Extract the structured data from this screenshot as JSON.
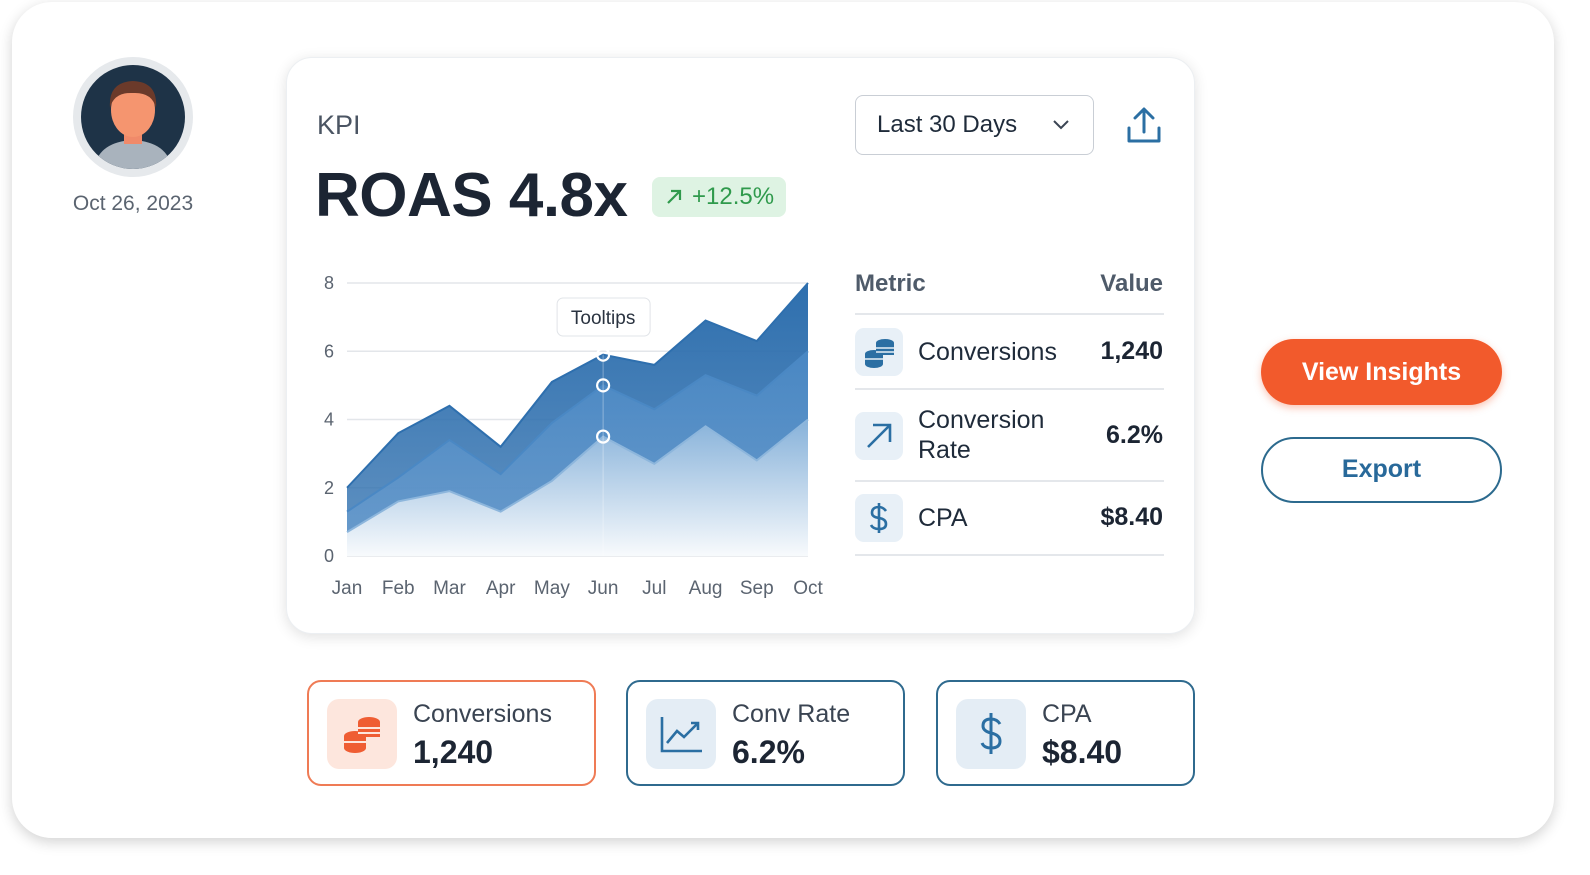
{
  "profile": {
    "date": "Oct 26, 2023"
  },
  "kpi_card": {
    "label": "KPI",
    "headline": "ROAS 4.8x",
    "change": "+12.5%",
    "period": "Last 30 Days"
  },
  "chart_data": {
    "type": "area",
    "categories": [
      "Jan",
      "Feb",
      "Mar",
      "Apr",
      "May",
      "Jun",
      "Jul",
      "Aug",
      "Sep",
      "Oct"
    ],
    "series": [
      {
        "color": "#2e6fae",
        "values": [
          2.0,
          3.6,
          4.4,
          3.2,
          5.1,
          5.9,
          5.6,
          6.9,
          6.3,
          8.0
        ]
      },
      {
        "color": "#4a88c4",
        "values": [
          1.3,
          2.3,
          3.4,
          2.4,
          3.9,
          5.0,
          4.3,
          5.3,
          4.7,
          6.0
        ]
      },
      {
        "color": "#8db6dc",
        "values": [
          0.7,
          1.6,
          1.9,
          1.3,
          2.2,
          3.5,
          2.7,
          3.8,
          2.8,
          4.0
        ]
      }
    ],
    "ylim": [
      0,
      8
    ],
    "yticks": [
      0,
      2,
      4,
      6,
      8
    ],
    "grid": true,
    "tooltip": "Tooltips"
  },
  "metrics_table": {
    "header": [
      "Metric",
      "Value"
    ],
    "rows": [
      [
        "Conversions",
        "1,240"
      ],
      [
        "Conversion Rate",
        "6.2%"
      ],
      [
        "CPA",
        "$8.40"
      ]
    ]
  },
  "actions": [
    "View Insights",
    "Export"
  ],
  "summary_cards": [
    {
      "label": "Conversions",
      "value": "1,240"
    },
    {
      "label": "Conv Rate",
      "value": "6.2%"
    },
    {
      "label": "CPA",
      "value": "$8.40"
    }
  ]
}
